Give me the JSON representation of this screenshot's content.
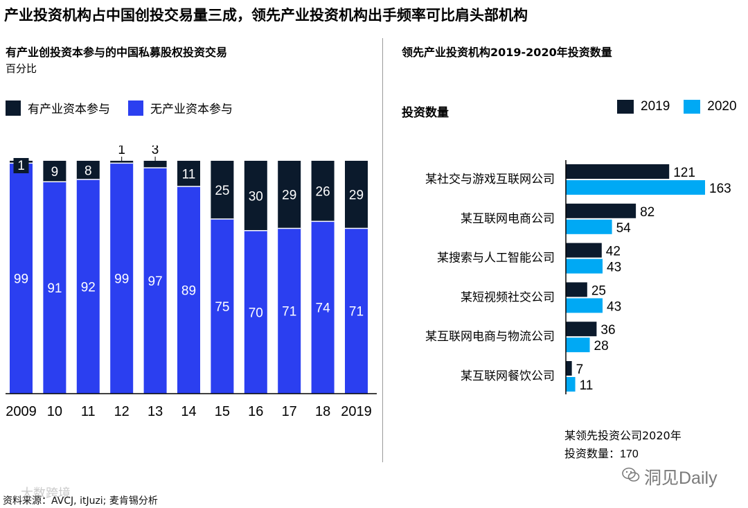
{
  "title": "产业投资机构占中国创投交易量三成，领先产业投资机构出手频率可比肩头部机构",
  "colors": {
    "dark": "#0b1a2c",
    "blue": "#2b3ff0",
    "cyan": "#00a9f4"
  },
  "left_chart": {
    "title": "有产业创投资本参与的中国私募股权投资交易",
    "unit": "百分比"
  },
  "right_chart": {
    "title": "领先产业投资机构2019-2020年投资数量",
    "axis_label": "投资数量"
  },
  "note": {
    "line1": "某领先投资公司2020年",
    "line2_label": "投资数量：",
    "line2_value": "170"
  },
  "source": "资料来源：AVCJ, itJuzi; 麦肯锡分析",
  "watermark_left": "大数跨境",
  "watermark_right": "洞见Daily",
  "chart_data": [
    {
      "type": "bar",
      "stacked": true,
      "orientation": "vertical",
      "categories": [
        "2009",
        "10",
        "11",
        "12",
        "13",
        "14",
        "15",
        "16",
        "17",
        "18",
        "2019"
      ],
      "series": [
        {
          "name": "有产业资本参与",
          "color": "#0b1a2c",
          "values": [
            1,
            9,
            8,
            1,
            3,
            11,
            25,
            30,
            29,
            26,
            29
          ]
        },
        {
          "name": "无产业资本参与",
          "color": "#2b3ff0",
          "values": [
            99,
            91,
            92,
            99,
            97,
            89,
            75,
            70,
            71,
            74,
            71
          ]
        }
      ],
      "ylim": [
        0,
        100
      ],
      "legend": "top-left",
      "grid": false
    },
    {
      "type": "bar",
      "orientation": "horizontal",
      "categories": [
        "某社交与游戏互联网公司",
        "某互联网电商公司",
        "某搜索与人工智能公司",
        "某短视频社交公司",
        "某互联网电商与物流公司",
        "某互联网餐饮公司"
      ],
      "series": [
        {
          "name": "2019",
          "color": "#0b1a2c",
          "values": [
            121,
            82,
            42,
            25,
            36,
            7
          ]
        },
        {
          "name": "2020",
          "color": "#00a9f4",
          "values": [
            163,
            54,
            43,
            43,
            28,
            11
          ]
        }
      ],
      "xlim": [
        0,
        170
      ],
      "legend": "top-right",
      "grid": false
    }
  ]
}
